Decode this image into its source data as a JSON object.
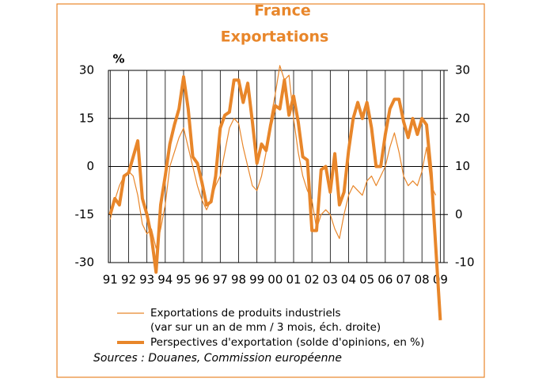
{
  "chart_data": {
    "type": "line",
    "title": "France",
    "subtitle": "Exportations",
    "y_unit": "%",
    "source": "Sources : Douanes, Commission européenne",
    "x": [
      1991,
      1991.25,
      1991.5,
      1991.75,
      1992,
      1992.25,
      1992.5,
      1992.75,
      1993,
      1993.25,
      1993.5,
      1993.75,
      1994,
      1994.25,
      1994.5,
      1994.75,
      1995,
      1995.25,
      1995.5,
      1995.75,
      1996,
      1996.25,
      1996.5,
      1996.75,
      1997,
      1997.25,
      1997.5,
      1997.75,
      1998,
      1998.25,
      1998.5,
      1998.75,
      1999,
      1999.25,
      1999.5,
      1999.75,
      2000,
      2000.25,
      2000.5,
      2000.75,
      2001,
      2001.25,
      2001.5,
      2001.75,
      2002,
      2002.25,
      2002.5,
      2002.75,
      2003,
      2003.25,
      2003.5,
      2003.75,
      2004,
      2004.25,
      2004.5,
      2004.75,
      2005,
      2005.25,
      2005.5,
      2005.75,
      2006,
      2006.25,
      2006.5,
      2006.75,
      2007,
      2007.25,
      2007.5,
      2007.75,
      2008,
      2008.25,
      2008.5,
      2008.75,
      2009
    ],
    "series": [
      {
        "name": "Exportations de produits industriels",
        "name_line2": "(var sur un an de mm / 3 mois, éch. droite)",
        "color": "#e8862a",
        "width": 1.2,
        "axis": "y2",
        "values": [
          -1,
          3,
          6,
          8,
          9,
          8,
          4,
          -2,
          -4,
          -3,
          -7,
          -3,
          2,
          10,
          13,
          16,
          18,
          14,
          10,
          6,
          3,
          1,
          3,
          6,
          8,
          13,
          18,
          20,
          19,
          14,
          10,
          6,
          5,
          8,
          13,
          20,
          25,
          31,
          28,
          29,
          20,
          13,
          8,
          5,
          3,
          -3,
          0,
          1,
          0,
          -3,
          -5,
          0,
          4,
          6,
          5,
          4,
          7,
          8,
          6,
          8,
          10,
          14,
          17,
          13,
          8,
          6,
          7,
          6,
          9,
          14,
          6,
          4,
          null
        ]
      },
      {
        "name": "Perspectives d'exportation (solde d'opinions, en %)",
        "color": "#e8862a",
        "width": 4,
        "values": [
          -15,
          -10,
          -12,
          -3,
          -2,
          3,
          8,
          -10,
          -15,
          -22,
          -33,
          -12,
          -3,
          7,
          13,
          18,
          28,
          18,
          3,
          1,
          -5,
          -12,
          -11,
          -3,
          12,
          16,
          17,
          27,
          27,
          20,
          26,
          14,
          1,
          7,
          5,
          13,
          19,
          18,
          27,
          16,
          22,
          14,
          3,
          2,
          -20,
          -20,
          -1,
          0,
          -8,
          4,
          -12,
          -8,
          5,
          15,
          20,
          15,
          20,
          12,
          0,
          0,
          10,
          18,
          21,
          21,
          14,
          9,
          15,
          10,
          15,
          13,
          -2,
          -25,
          -48
        ]
      }
    ],
    "xlim": [
      1990.9,
      2009.2
    ],
    "xticks": [
      {
        "value": 1991,
        "label": "91"
      },
      {
        "value": 1992,
        "label": "92"
      },
      {
        "value": 1993,
        "label": "93"
      },
      {
        "value": 1994,
        "label": "94"
      },
      {
        "value": 1995,
        "label": "95"
      },
      {
        "value": 1996,
        "label": "96"
      },
      {
        "value": 1997,
        "label": "97"
      },
      {
        "value": 1998,
        "label": "98"
      },
      {
        "value": 1999,
        "label": "99"
      },
      {
        "value": 2000,
        "label": "00"
      },
      {
        "value": 2001,
        "label": "01"
      },
      {
        "value": 2002,
        "label": "02"
      },
      {
        "value": 2003,
        "label": "03"
      },
      {
        "value": 2004,
        "label": "04"
      },
      {
        "value": 2005,
        "label": "05"
      },
      {
        "value": 2006,
        "label": "06"
      },
      {
        "value": 2007,
        "label": "07"
      },
      {
        "value": 2008,
        "label": "08"
      },
      {
        "value": 2009,
        "label": "09"
      }
    ],
    "ylim": [
      -30,
      30
    ],
    "yticks": [
      -30,
      -15,
      0,
      15,
      30
    ],
    "y2lim": [
      -10,
      30
    ],
    "y2ticks": [
      -10,
      0,
      10,
      20,
      30
    ],
    "grid": true
  }
}
